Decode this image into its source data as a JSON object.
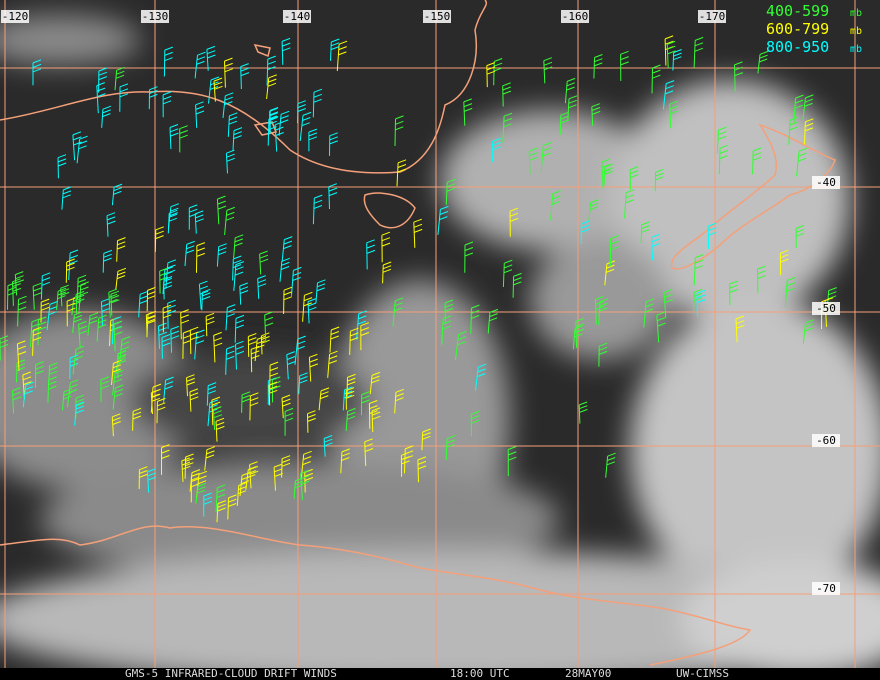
{
  "map": {
    "longitude_labels": [
      "-120",
      "-130",
      "-140",
      "-150",
      "-160",
      "-170"
    ],
    "latitude_labels": [
      "-40",
      "-50",
      "-60",
      "-70"
    ],
    "legend": [
      {
        "range": "400-599",
        "unit": "mb"
      },
      {
        "range": "600-799",
        "unit": "mb"
      },
      {
        "range": "800-950",
        "unit": "mb"
      }
    ],
    "footer": [
      "GMS-5 INFRARED-CLOUD DRIFT WINDS",
      "18:00 UTC",
      "28MAY00",
      "UW-CIMSS"
    ]
  }
}
